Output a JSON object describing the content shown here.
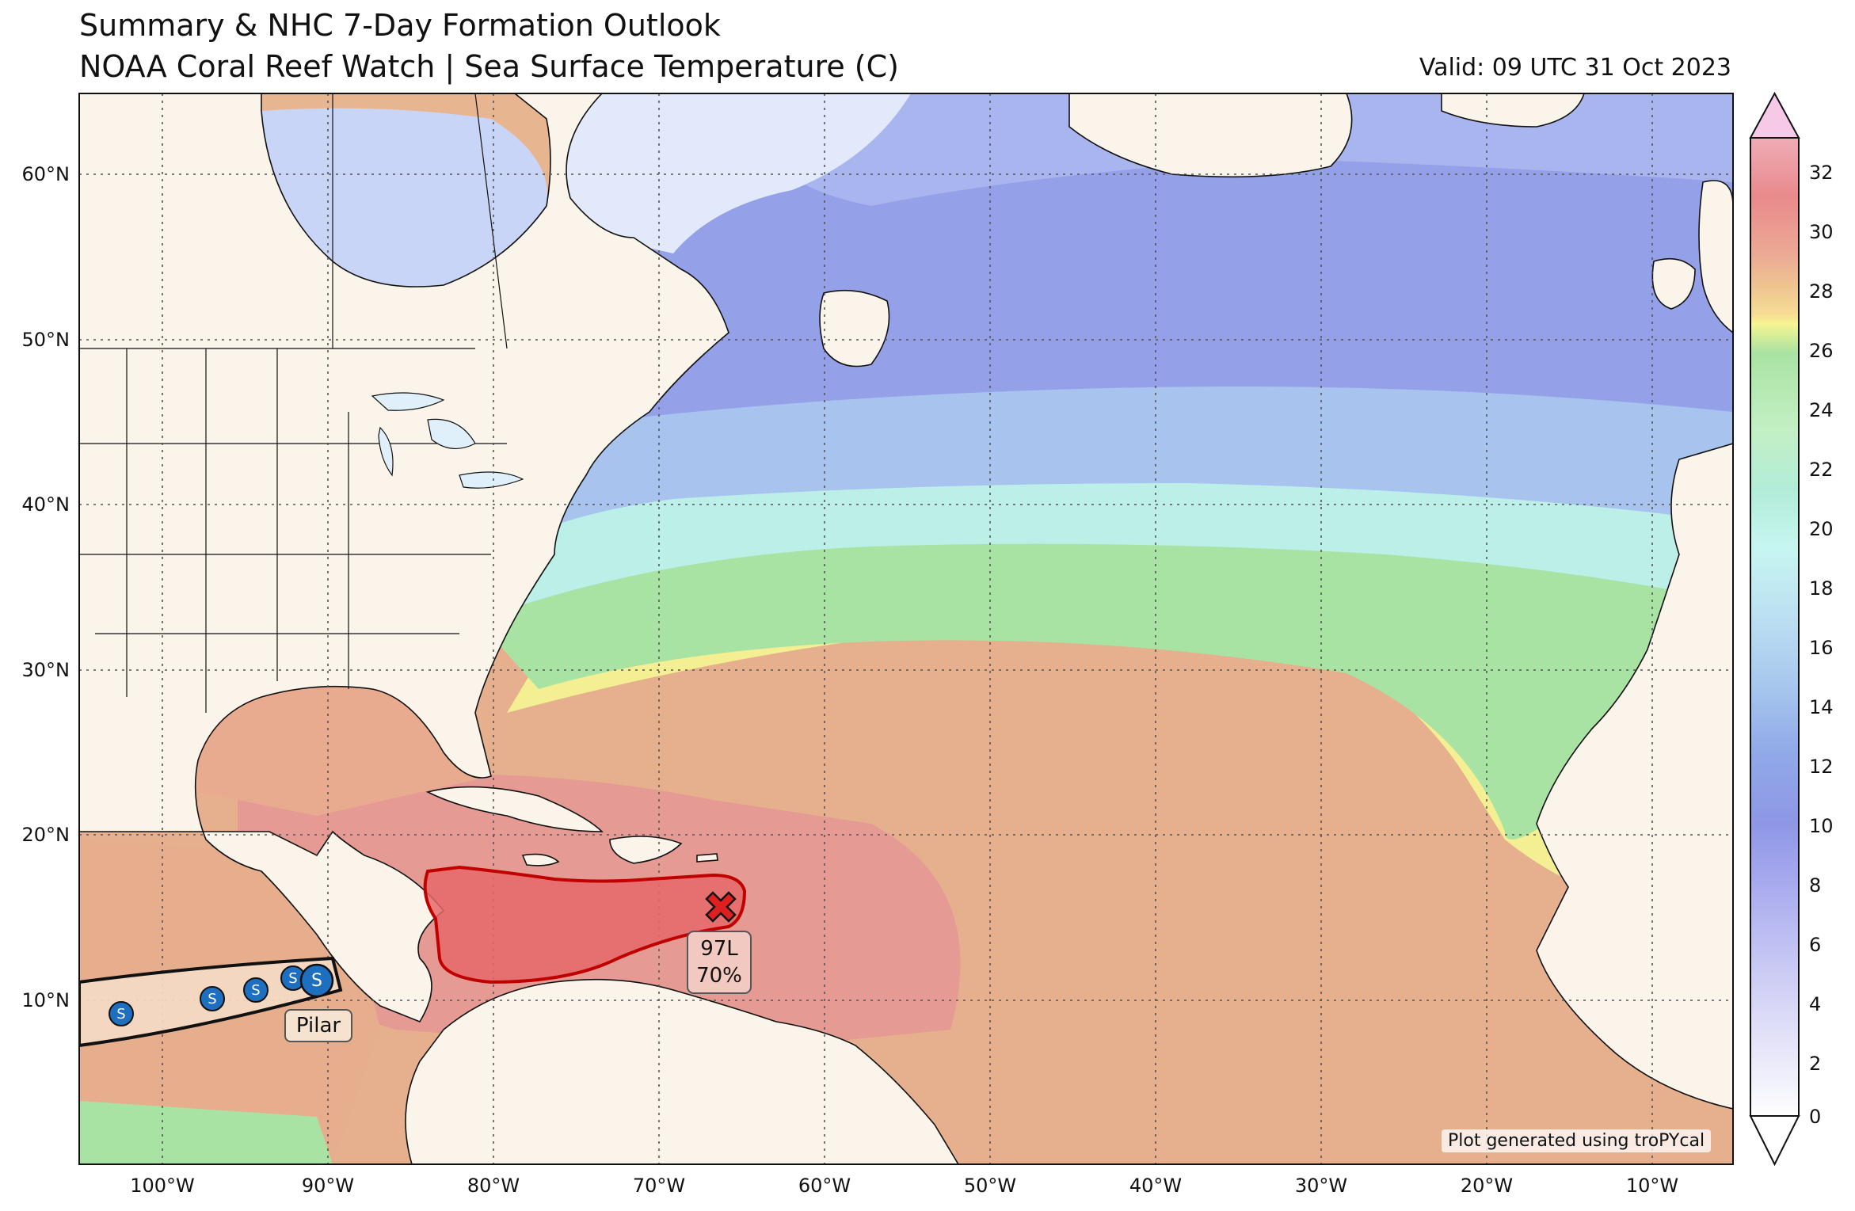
{
  "title": {
    "line1": "Summary & NHC 7-Day Formation Outlook",
    "line2": "NOAA Coral Reef Watch | Sea Surface Temperature (C)",
    "valid": "Valid: 09 UTC 31 Oct 2023"
  },
  "credit": "Plot generated using troPYcal",
  "axes": {
    "lon_ticks": [
      "100°W",
      "90°W",
      "80°W",
      "70°W",
      "60°W",
      "50°W",
      "40°W",
      "30°W",
      "20°W",
      "10°W"
    ],
    "lat_ticks": [
      "60°N",
      "50°N",
      "40°N",
      "30°N",
      "20°N",
      "10°N"
    ]
  },
  "colorbar": {
    "ticks": [
      "32",
      "30",
      "28",
      "26",
      "24",
      "22",
      "20",
      "18",
      "16",
      "14",
      "12",
      "10",
      "8",
      "6",
      "4",
      "2",
      "0"
    ],
    "colors": {
      "c32": "#f6c9e6",
      "c31": "#efacb6",
      "c30": "#e98a8c",
      "c29": "#ecaa94",
      "c28": "#eec391",
      "c27": "#f5dc94",
      "c26": "#f7f591",
      "c25": "#a9e3a2",
      "c24": "#b8ebb5",
      "c23": "#c3f0c5",
      "c22": "#b2ecd9",
      "c21": "#b7f1ea",
      "c20": "#c7f6f1",
      "c19": "#c0e7f0",
      "c18": "#b9dcf1",
      "c16": "#a7c7ee",
      "c14": "#90a9e8",
      "c12": "#8e97e6",
      "c10": "#8e95e7",
      "c8": "#a7a9ee",
      "c6": "#c2c3f3",
      "c4": "#dcdbf7",
      "c2": "#efeffc",
      "c0": "#ffffff"
    }
  },
  "outlook": {
    "label": "97L",
    "probability": "70%",
    "fill": "#e56868",
    "edge": "#c00000"
  },
  "storm": {
    "name": "Pilar",
    "symbol": "S",
    "track_color": "#1e6fbf"
  },
  "colors": {
    "land": "#faf4ea",
    "border": "#111111",
    "grid": "#555555"
  }
}
